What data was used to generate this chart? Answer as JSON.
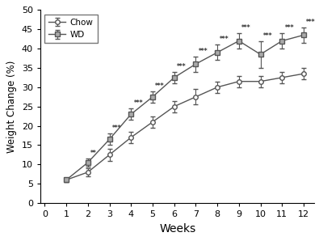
{
  "weeks": [
    1,
    2,
    3,
    4,
    5,
    6,
    7,
    8,
    9,
    10,
    11,
    12
  ],
  "chow_mean": [
    6.0,
    8.0,
    12.5,
    17.0,
    21.0,
    25.0,
    27.5,
    30.0,
    31.5,
    31.5,
    32.5,
    33.5
  ],
  "chow_err": [
    0.5,
    1.0,
    1.5,
    1.5,
    1.5,
    1.5,
    2.0,
    1.5,
    1.5,
    1.5,
    1.5,
    1.5
  ],
  "wd_mean": [
    6.0,
    10.5,
    16.5,
    23.0,
    27.5,
    32.5,
    36.0,
    39.0,
    42.0,
    38.5,
    42.0,
    43.5
  ],
  "wd_err": [
    0.5,
    1.0,
    1.5,
    1.5,
    1.5,
    1.5,
    2.0,
    2.0,
    2.0,
    3.5,
    2.0,
    2.0
  ],
  "sig_weeks_2star": [
    2
  ],
  "sig_weeks_3star": [
    3,
    4,
    5,
    6,
    7,
    8,
    9,
    10,
    11,
    12
  ],
  "xlabel": "Weeks",
  "ylabel": "Weight Change (%)",
  "ylim": [
    0,
    50
  ],
  "yticks": [
    0,
    5,
    10,
    15,
    20,
    25,
    30,
    35,
    40,
    45,
    50
  ],
  "xlim": [
    -0.2,
    12.5
  ],
  "xticks": [
    0,
    1,
    2,
    3,
    4,
    5,
    6,
    7,
    8,
    9,
    10,
    11,
    12
  ],
  "chow_color": "#555555",
  "wd_color": "#555555",
  "wd_fill": "#aaaaaa",
  "legend_chow": "Chow",
  "legend_wd": "WD",
  "sig_color": "#333333",
  "background_color": "#ffffff"
}
